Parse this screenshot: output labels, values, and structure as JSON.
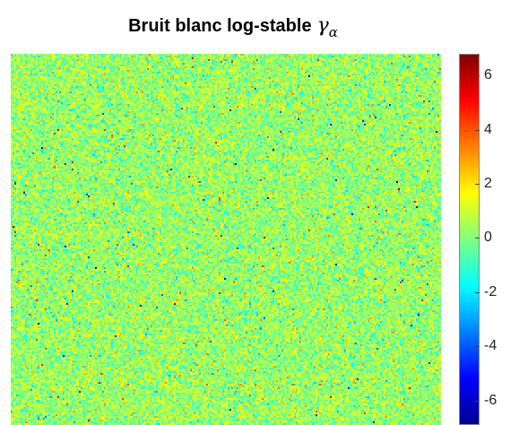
{
  "chart_data": {
    "type": "heatmap",
    "title": "Bruit blanc log-stable",
    "title_symbol": "γ",
    "title_subscript": "α",
    "colormap": "jet",
    "clim": [
      -6.9,
      6.8
    ],
    "colorbar_ticks": [
      "6",
      "4",
      "2",
      "0",
      "-2",
      "-4",
      "-6"
    ],
    "colorbar_tick_values": [
      6,
      4,
      2,
      0,
      -2,
      -4,
      -6
    ],
    "distribution": "log-stable white noise, values concentrated near 0 with heavy tails",
    "xlabel": "",
    "ylabel": ""
  }
}
